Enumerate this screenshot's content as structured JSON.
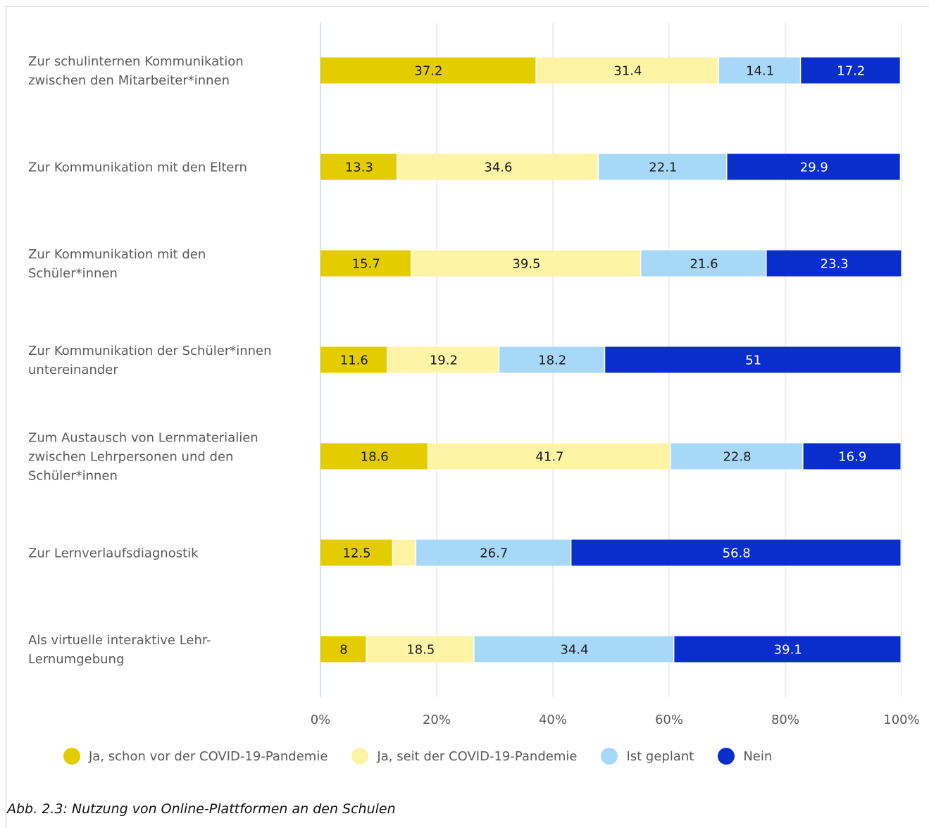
{
  "chart_data": {
    "type": "bar",
    "orientation": "horizontal",
    "stacked": true,
    "categories": [
      [
        "Zur schulinternen Kommunikation",
        "zwischen den Mitarbeiter*innen"
      ],
      [
        "Zur Kommunikation mit den Eltern"
      ],
      [
        "Zur Kommunikation mit den",
        "Schüler*innen"
      ],
      [
        "Zur Kommunikation der Schüler*innen",
        "untereinander"
      ],
      [
        "Zum Austausch von Lernmaterialien",
        "zwischen Lehrpersonen und den",
        "Schüler*innen"
      ],
      [
        "Zur Lernverlaufsdiagnostik"
      ],
      [
        "Als virtuelle interaktive Lehr-",
        "Lernumgebung"
      ]
    ],
    "series": [
      {
        "name": "Ja, schon vor der COVID-19-Pandemie",
        "color": "#E3CC00",
        "label_color": "#1a1a1a",
        "values": [
          37.2,
          13.3,
          15.7,
          11.6,
          18.6,
          12.5,
          8
        ]
      },
      {
        "name": "Ja, seit der COVID-19-Pandemie",
        "color": "#FFF3A6",
        "label_color": "#1a1a1a",
        "values": [
          31.4,
          34.6,
          39.5,
          19.2,
          41.7,
          4.0,
          18.5
        ],
        "labels": [
          "31.4",
          "34.6",
          "39.5",
          "19.2",
          "41.7",
          "",
          "18.5"
        ]
      },
      {
        "name": "Ist geplant",
        "color": "#A8D8F8",
        "label_color": "#1a1a1a",
        "values": [
          14.1,
          22.1,
          21.6,
          18.2,
          22.8,
          26.7,
          34.4
        ]
      },
      {
        "name": "Nein",
        "color": "#0A2ECC",
        "label_color": "#ffffff",
        "values": [
          17.2,
          29.9,
          23.3,
          51,
          16.9,
          56.8,
          39.1
        ]
      }
    ],
    "xticks": [
      "0%",
      "20%",
      "40%",
      "60%",
      "80%",
      "100%"
    ],
    "xlim": [
      0,
      100
    ],
    "grid": true,
    "legend_position": "bottom"
  },
  "caption": "Abb. 2.3: Nutzung von Online-Plattformen an den Schulen"
}
